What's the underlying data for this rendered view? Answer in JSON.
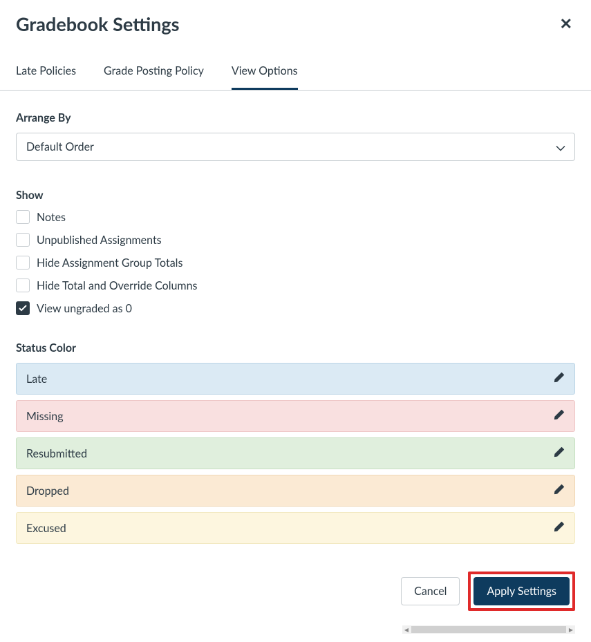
{
  "modal": {
    "title": "Gradebook Settings"
  },
  "tabs": [
    {
      "label": "Late Policies",
      "active": false
    },
    {
      "label": "Grade Posting Policy",
      "active": false
    },
    {
      "label": "View Options",
      "active": true
    }
  ],
  "arrangeBy": {
    "label": "Arrange By",
    "value": "Default Order"
  },
  "show": {
    "label": "Show",
    "options": [
      {
        "label": "Notes",
        "checked": false
      },
      {
        "label": "Unpublished Assignments",
        "checked": false
      },
      {
        "label": "Hide Assignment Group Totals",
        "checked": false
      },
      {
        "label": "Hide Total and Override Columns",
        "checked": false
      },
      {
        "label": "View ungraded as 0",
        "checked": true
      }
    ]
  },
  "statusColor": {
    "label": "Status Color",
    "statuses": [
      {
        "label": "Late",
        "bg": "#dbeaf4",
        "border": "#bcd5e6"
      },
      {
        "label": "Missing",
        "bg": "#f9e0e0",
        "border": "#efc7c7"
      },
      {
        "label": "Resubmitted",
        "bg": "#e0efdd",
        "border": "#c7e0c2"
      },
      {
        "label": "Dropped",
        "bg": "#fbead4",
        "border": "#f0d7b5"
      },
      {
        "label": "Excused",
        "bg": "#fdf6df",
        "border": "#f2e9c1"
      }
    ]
  },
  "footer": {
    "cancel": "Cancel",
    "apply": "Apply Settings"
  },
  "colors": {
    "highlight": "#e02a2a",
    "primary": "#0e3b5e",
    "text": "#2d3b45"
  }
}
